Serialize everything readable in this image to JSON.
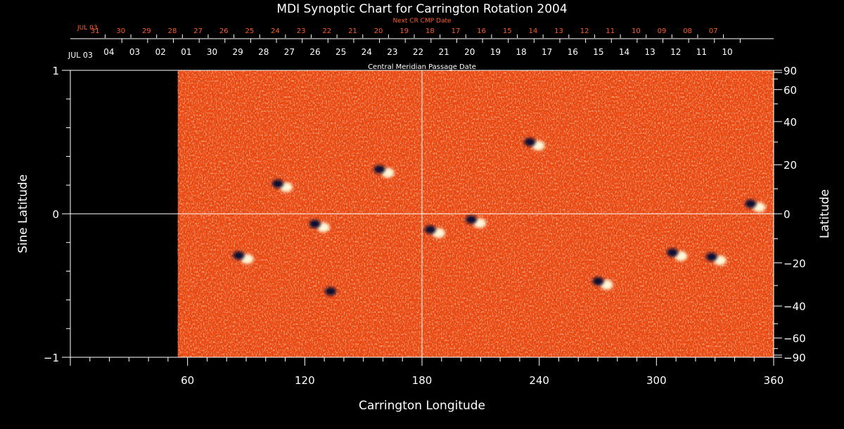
{
  "chart_data": {
    "type": "heatmap",
    "title": "MDI Synoptic Chart for Carrington Rotation 2004",
    "xlabel": "Carrington Longitude",
    "ylabel_left": "Sine Latitude",
    "ylabel_right": "Latitude",
    "xlim": [
      0,
      360
    ],
    "ylim": [
      -1,
      1
    ],
    "x_ticks": [
      60,
      120,
      180,
      240,
      300,
      360
    ],
    "y_ticks_left": [
      "1",
      "0",
      "−1"
    ],
    "y_ticks_left_values": [
      1,
      0,
      -1
    ],
    "y_ticks_right": [
      90,
      60,
      40,
      20,
      0,
      -20,
      -40,
      -60,
      -90
    ],
    "y_ticks_right_labels": [
      "90",
      "60",
      "40",
      "20",
      "0",
      "−20",
      "−40",
      "−60",
      "−90"
    ],
    "data_start_longitude": 55,
    "cmp_axis_label": "Central Meridian Passage Date",
    "cmp_start_label": "JUL 03",
    "cmp_dates": [
      "04",
      "03",
      "02",
      "01",
      "30",
      "29",
      "28",
      "27",
      "26",
      "25",
      "24",
      "23",
      "22",
      "21",
      "20",
      "19",
      "18",
      "17",
      "16",
      "15",
      "14",
      "13",
      "12",
      "11",
      "10"
    ],
    "next_cr_label": "Next CR CMP Date",
    "next_cr_start_label": "JUL 03",
    "next_cr_dates": [
      "31",
      "30",
      "29",
      "28",
      "27",
      "26",
      "25",
      "24",
      "23",
      "22",
      "21",
      "20",
      "19",
      "18",
      "17",
      "16",
      "15",
      "14",
      "13",
      "12",
      "11",
      "10",
      "09",
      "08",
      "07"
    ],
    "background_color": "#f04a10",
    "positive_color": "#fff8d8",
    "negative_color": "#0a0a30",
    "active_regions": [
      {
        "lon": 160,
        "sinlat": 0.3,
        "polarity": "bipolar"
      },
      {
        "lon": 237,
        "sinlat": 0.49,
        "polarity": "bipolar"
      },
      {
        "lon": 350,
        "sinlat": 0.06,
        "polarity": "bipolar"
      },
      {
        "lon": 108,
        "sinlat": 0.2,
        "polarity": "bipolar"
      },
      {
        "lon": 127,
        "sinlat": -0.08,
        "polarity": "bipolar"
      },
      {
        "lon": 186,
        "sinlat": -0.12,
        "polarity": "bipolar"
      },
      {
        "lon": 207,
        "sinlat": -0.05,
        "polarity": "bipolar"
      },
      {
        "lon": 310,
        "sinlat": -0.28,
        "polarity": "bipolar"
      },
      {
        "lon": 330,
        "sinlat": -0.31,
        "polarity": "bipolar"
      },
      {
        "lon": 88,
        "sinlat": -0.3,
        "polarity": "bipolar"
      },
      {
        "lon": 135,
        "sinlat": -0.55,
        "polarity": "negative"
      },
      {
        "lon": 272,
        "sinlat": -0.48,
        "polarity": "bipolar"
      }
    ]
  }
}
